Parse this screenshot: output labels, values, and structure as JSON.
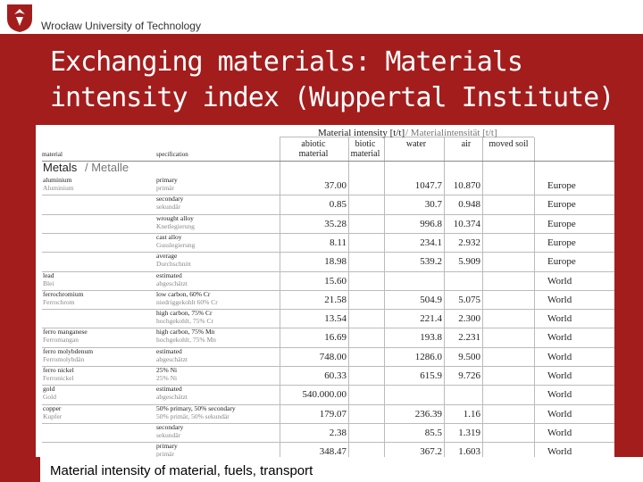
{
  "header": {
    "university": "Wrocław University of Technology"
  },
  "title": {
    "line1": "Exchanging materials: Materials",
    "line2": "intensity index (Wuppertal Institute)"
  },
  "table": {
    "group_header": "Material intensity [t/t]",
    "group_header_de": "/ Materialintensität [t/t]",
    "columns": [
      "material",
      "specification",
      "abiotic material",
      "biotic material",
      "water",
      "air",
      "moved soil"
    ],
    "section": "Metals",
    "section_de": "/ Metalle",
    "rows": [
      [
        "aluminium",
        "Aluminium",
        "primary",
        "primär",
        "37.00",
        null,
        "1047.7",
        "10.870",
        null,
        "Europe"
      ],
      [
        null,
        null,
        "secondary",
        "sekundär",
        "0.85",
        null,
        "30.7",
        "0.948",
        null,
        "Europe"
      ],
      [
        null,
        null,
        "wrought alloy",
        "Knetlegierung",
        "35.28",
        null,
        "996.8",
        "10.374",
        null,
        "Europe"
      ],
      [
        null,
        null,
        "cast alloy",
        "Gusslegierung",
        "8.11",
        null,
        "234.1",
        "2.932",
        null,
        "Europe"
      ],
      [
        null,
        null,
        "average",
        "Durchschnitt",
        "18.98",
        null,
        "539.2",
        "5.909",
        null,
        "Europe"
      ],
      [
        "lead",
        "Blei",
        "estimated",
        "abgeschätzt",
        "15.60",
        null,
        null,
        null,
        null,
        "World"
      ],
      [
        "ferrochromium",
        "Ferrochrom",
        "low carbon, 60% Cr",
        "niedriggekohlt 60% Cr",
        "21.58",
        null,
        "504.9",
        "5.075",
        null,
        "World"
      ],
      [
        null,
        null,
        "high carbon, 75% Cr",
        "hochgekohlt, 75% Cr",
        "13.54",
        null,
        "221.4",
        "2.300",
        null,
        "World"
      ],
      [
        "ferro manganese",
        "Ferromangan",
        "high carbon, 75% Mn",
        "hochgekohlt, 75% Mn",
        "16.69",
        null,
        "193.8",
        "2.231",
        null,
        "World"
      ],
      [
        "ferro molybdenum",
        "Ferromolybdän",
        "estimated",
        "abgeschätzt",
        "748.00",
        null,
        "1286.0",
        "9.500",
        null,
        "World"
      ],
      [
        "ferro nickel",
        "Ferronickel",
        "25% Ni",
        "25% Ni",
        "60.33",
        null,
        "615.9",
        "9.726",
        null,
        "World"
      ],
      [
        "gold",
        "Gold",
        "estimated",
        "abgeschätzt",
        "540.000.00",
        null,
        null,
        null,
        null,
        "World"
      ],
      [
        "copper",
        "Kupfer",
        "50% primary, 50% secondary",
        "50% primär, 50% sekundär",
        "179.07",
        null,
        "236.39",
        "1.16",
        null,
        "World"
      ],
      [
        null,
        null,
        "secondary",
        "sekundär",
        "2.38",
        null,
        "85.5",
        "1.319",
        null,
        "World"
      ],
      [
        null,
        null,
        "primary",
        "primär",
        "348.47",
        null,
        "367.2",
        "1.603",
        null,
        "World"
      ]
    ]
  },
  "caption": "Material intensity of material, fuels, transport"
}
